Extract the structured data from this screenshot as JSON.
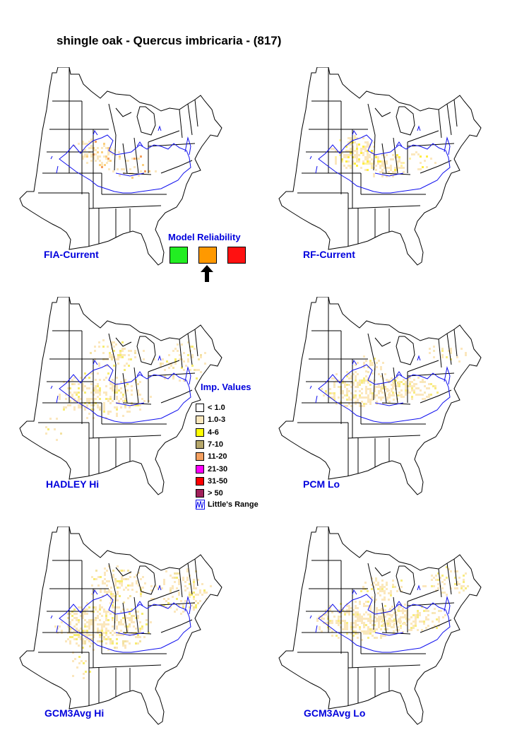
{
  "title": "shingle oak - Quercus imbricaria - (817)",
  "maps": [
    {
      "label": "FIA-Current"
    },
    {
      "label": "RF-Current"
    },
    {
      "label": "HADLEY Hi"
    },
    {
      "label": "PCM Lo"
    },
    {
      "label": "GCM3Avg Hi"
    },
    {
      "label": "GCM3Avg Lo"
    }
  ],
  "reliability": {
    "title": "Model Reliability",
    "colors": [
      "#22ee22",
      "#ff9900",
      "#ff1111"
    ],
    "selected_index": 1
  },
  "legend": {
    "title": "Imp. Values",
    "items": [
      {
        "label": "< 1.0",
        "color": "#ffffff"
      },
      {
        "label": "1.0-3",
        "color": "#fbe7bd"
      },
      {
        "label": "4-6",
        "color": "#ffff00"
      },
      {
        "label": "7-10",
        "color": "#b5a66a"
      },
      {
        "label": "11-20",
        "color": "#f4a060"
      },
      {
        "label": "21-30",
        "color": "#ff00ff"
      },
      {
        "label": "31-50",
        "color": "#ff0000"
      },
      {
        "label": "> 50",
        "color": "#a0205a"
      }
    ],
    "range_label": "Little's Range",
    "range_color": "#1010ee"
  }
}
